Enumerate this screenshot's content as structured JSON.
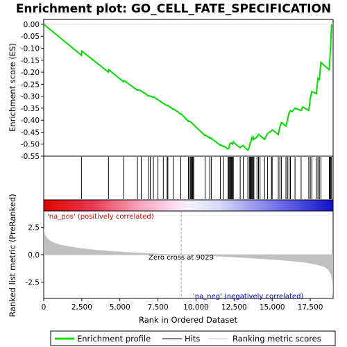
{
  "chart_data": {
    "type": "line",
    "title": "Enrichment plot: GO_CELL_FATE_SPECIFICATION",
    "x_range": [
      0,
      19000
    ],
    "x_ticks": [
      0,
      2500,
      5000,
      7500,
      10000,
      12500,
      15000,
      17500
    ],
    "x_tick_labels": [
      "0",
      "2,500",
      "5,000",
      "7,500",
      "10,000",
      "12,500",
      "15,000",
      "17,500"
    ],
    "xlabel": "Rank in Ordered Dataset",
    "panels": {
      "es": {
        "ylabel": "Enrichment score (ES)",
        "ylim": [
          -0.55,
          0.02
        ],
        "y_ticks": [
          0.0,
          -0.05,
          -0.1,
          -0.15,
          -0.2,
          -0.25,
          -0.3,
          -0.35,
          -0.4,
          -0.45,
          -0.5,
          -0.55
        ],
        "y_tick_labels": [
          "0.00",
          "-0.05",
          "-0.10",
          "-0.15",
          "-0.20",
          "-0.25",
          "-0.30",
          "-0.35",
          "-0.40",
          "-0.45",
          "-0.50",
          "-0.55"
        ]
      },
      "metric": {
        "ylabel": "Ranked list metric (PreRanked)",
        "ylim": [
          -4.0,
          4.0
        ],
        "y_ticks": [
          2.5,
          0.0,
          -2.5
        ],
        "y_tick_labels": [
          "2.5",
          "0.0",
          "-2.5"
        ]
      }
    },
    "series": [
      {
        "name": "Enrichment profile",
        "color": "#00dd00",
        "x": [
          0,
          2480,
          2500,
          4250,
          4270,
          5250,
          5270,
          6150,
          6170,
          6400,
          6900,
          6920,
          7200,
          7220,
          7850,
          8100,
          8120,
          8500,
          8520,
          9000,
          9020,
          9500,
          9520,
          9700,
          9850,
          10600,
          10620,
          10900,
          10920,
          11600,
          11620,
          11800,
          11820,
          12100,
          12180,
          12200,
          12300,
          12400,
          12450,
          12500,
          12900,
          12950,
          13100,
          13150,
          13400,
          13450,
          13500,
          13550,
          13600,
          13650,
          13700,
          13750,
          13800,
          14000,
          14100,
          14200,
          14500,
          14700,
          14950,
          15000,
          15400,
          15500,
          15600,
          15900,
          16000,
          16100,
          16200,
          16300,
          16500,
          16900,
          17000,
          17400,
          17500,
          17600,
          17900,
          18000,
          18100,
          18200,
          18750,
          18800,
          18850,
          18900
        ],
        "y": [
          0.0,
          -0.13,
          -0.112,
          -0.2,
          -0.19,
          -0.24,
          -0.235,
          -0.275,
          -0.272,
          -0.278,
          -0.3,
          -0.298,
          -0.305,
          -0.303,
          -0.33,
          -0.34,
          -0.338,
          -0.355,
          -0.353,
          -0.375,
          -0.373,
          -0.405,
          -0.403,
          -0.41,
          -0.42,
          -0.465,
          -0.462,
          -0.475,
          -0.472,
          -0.505,
          -0.503,
          -0.51,
          -0.508,
          -0.52,
          -0.515,
          -0.5,
          -0.495,
          -0.5,
          -0.49,
          -0.495,
          -0.515,
          -0.51,
          -0.505,
          -0.51,
          -0.525,
          -0.52,
          -0.51,
          -0.495,
          -0.49,
          -0.475,
          -0.48,
          -0.47,
          -0.48,
          -0.47,
          -0.46,
          -0.465,
          -0.48,
          -0.455,
          -0.445,
          -0.44,
          -0.46,
          -0.43,
          -0.41,
          -0.425,
          -0.4,
          -0.37,
          -0.36,
          -0.365,
          -0.35,
          -0.36,
          -0.345,
          -0.36,
          -0.31,
          -0.28,
          -0.29,
          -0.225,
          -0.23,
          -0.16,
          -0.19,
          -0.13,
          -0.07,
          0.0
        ]
      }
    ],
    "hits": [
      2480,
      4250,
      5250,
      6150,
      6400,
      6900,
      7000,
      7200,
      7500,
      7850,
      8100,
      8150,
      8500,
      9000,
      9500,
      9600,
      9650,
      9700,
      9750,
      9800,
      9850,
      10600,
      10900,
      11000,
      11600,
      11800,
      12100,
      12150,
      12200,
      12250,
      12300,
      12350,
      12400,
      12450,
      12900,
      13100,
      13400,
      13500,
      13550,
      13600,
      13650,
      13700,
      13750,
      13800,
      14000,
      14100,
      14200,
      14500,
      14700,
      14950,
      15000,
      15400,
      15500,
      15600,
      15900,
      16000,
      16100,
      16200,
      16500,
      16900,
      17400,
      17500,
      17600,
      17900,
      18000,
      18100,
      18200,
      18750,
      18800,
      18850,
      18900
    ],
    "metric": {
      "x": [
        0,
        100,
        300,
        600,
        1000,
        1500,
        2000,
        3000,
        4000,
        5000,
        6000,
        7000,
        8000,
        9029,
        10000,
        11000,
        12000,
        13000,
        14000,
        15000,
        16000,
        17000,
        17500,
        18000,
        18400,
        18700,
        18850,
        18950,
        19000
      ],
      "y": [
        2.4,
        1.8,
        1.4,
        1.15,
        0.95,
        0.8,
        0.68,
        0.5,
        0.38,
        0.28,
        0.2,
        0.12,
        0.06,
        0.0,
        -0.06,
        -0.12,
        -0.2,
        -0.28,
        -0.36,
        -0.45,
        -0.55,
        -0.7,
        -0.8,
        -0.95,
        -1.1,
        -1.4,
        -1.8,
        -2.5,
        -3.9
      ],
      "fill_color": "#c0c0c0"
    },
    "zero_cross_label": "Zero cross at 9029",
    "na_pos_label": "'na_pos' (positively correlated)",
    "na_neg_label": "'na_neg' (negatively correlated)",
    "na_pos_color": "#ff0000",
    "na_neg_color": "#0000ff",
    "legend": {
      "position": "bottom",
      "entries": [
        {
          "label": "Enrichment profile",
          "color": "#00dd00"
        },
        {
          "label": "Hits",
          "color": "#000000"
        },
        {
          "label": "Ranking metric scores",
          "color": "#c0c0c0"
        }
      ]
    }
  }
}
